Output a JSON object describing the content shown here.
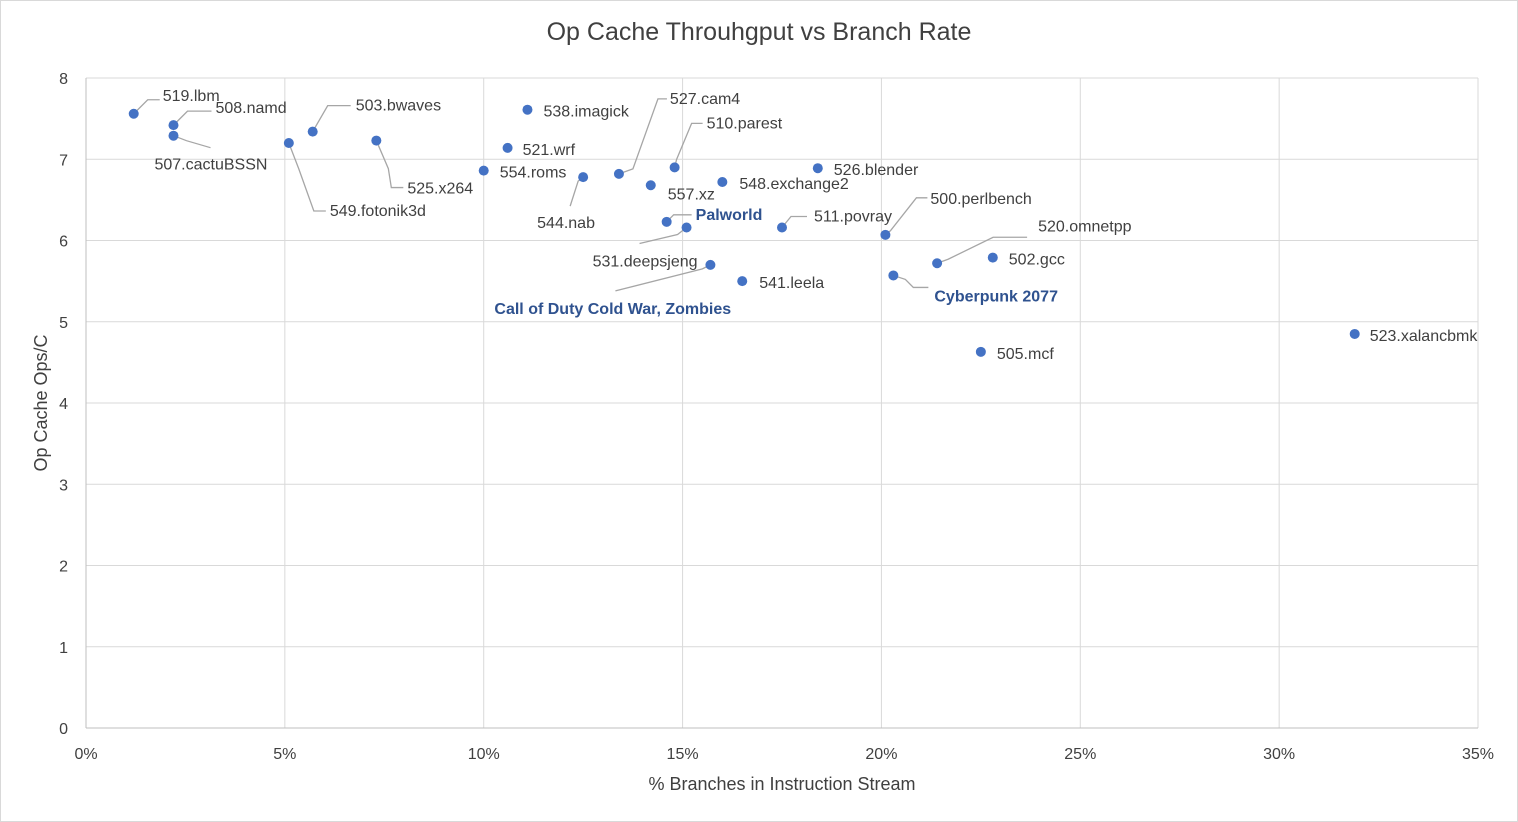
{
  "chart_data": {
    "type": "scatter",
    "title": "Op Cache Throuhgput vs Branch Rate",
    "xlabel": "% Branches in Instruction Stream",
    "ylabel": "Op Cache Ops/C",
    "xlim": [
      0,
      35
    ],
    "ylim": [
      0,
      8
    ],
    "x_ticks": [
      0,
      5,
      10,
      15,
      20,
      25,
      30,
      35
    ],
    "x_tick_labels": [
      "0%",
      "5%",
      "10%",
      "15%",
      "20%",
      "25%",
      "30%",
      "35%"
    ],
    "y_ticks": [
      0,
      1,
      2,
      3,
      4,
      5,
      6,
      7,
      8
    ],
    "y_tick_labels": [
      "0",
      "1",
      "2",
      "3",
      "4",
      "5",
      "6",
      "7",
      "8"
    ],
    "grid": true,
    "marker_color": "#4472c4",
    "highlight_label_color": "#2f528f",
    "points": [
      {
        "name": "519.lbm",
        "x": 1.2,
        "y": 7.56,
        "highlight": false
      },
      {
        "name": "508.namd",
        "x": 2.2,
        "y": 7.42,
        "highlight": false
      },
      {
        "name": "507.cactuBSSN",
        "x": 2.2,
        "y": 7.29,
        "highlight": false
      },
      {
        "name": "549.fotonik3d",
        "x": 5.1,
        "y": 7.2,
        "highlight": false
      },
      {
        "name": "503.bwaves",
        "x": 5.7,
        "y": 7.34,
        "highlight": false
      },
      {
        "name": "525.x264",
        "x": 7.3,
        "y": 7.23,
        "highlight": false
      },
      {
        "name": "554.roms",
        "x": 10.0,
        "y": 6.86,
        "highlight": false
      },
      {
        "name": "521.wrf",
        "x": 10.6,
        "y": 7.14,
        "highlight": false
      },
      {
        "name": "538.imagick",
        "x": 11.1,
        "y": 7.61,
        "highlight": false
      },
      {
        "name": "544.nab",
        "x": 12.5,
        "y": 6.78,
        "highlight": false
      },
      {
        "name": "527.cam4",
        "x": 13.4,
        "y": 6.82,
        "highlight": false
      },
      {
        "name": "557.xz",
        "x": 14.2,
        "y": 6.68,
        "highlight": false
      },
      {
        "name": "Palworld",
        "x": 14.6,
        "y": 6.23,
        "highlight": true
      },
      {
        "name": "510.parest",
        "x": 14.8,
        "y": 6.9,
        "highlight": false
      },
      {
        "name": "531.deepsjeng",
        "x": 15.1,
        "y": 6.16,
        "highlight": false
      },
      {
        "name": "Call of Duty Cold War, Zombies",
        "x": 15.7,
        "y": 5.7,
        "highlight": true
      },
      {
        "name": "548.exchange2",
        "x": 16.0,
        "y": 6.72,
        "highlight": false
      },
      {
        "name": "541.leela",
        "x": 16.5,
        "y": 5.5,
        "highlight": false
      },
      {
        "name": "511.povray",
        "x": 17.5,
        "y": 6.16,
        "highlight": false
      },
      {
        "name": "526.blender",
        "x": 18.4,
        "y": 6.89,
        "highlight": false
      },
      {
        "name": "500.perlbench",
        "x": 20.1,
        "y": 6.07,
        "highlight": false
      },
      {
        "name": "Cyberpunk 2077",
        "x": 20.3,
        "y": 5.57,
        "highlight": true
      },
      {
        "name": "520.omnetpp",
        "x": 21.4,
        "y": 5.72,
        "highlight": false
      },
      {
        "name": "502.gcc",
        "x": 22.8,
        "y": 5.79,
        "highlight": false
      },
      {
        "name": "505.mcf",
        "x": 22.5,
        "y": 4.63,
        "highlight": false
      },
      {
        "name": "523.xalancbmk",
        "x": 31.9,
        "y": 4.85,
        "highlight": false
      }
    ]
  }
}
